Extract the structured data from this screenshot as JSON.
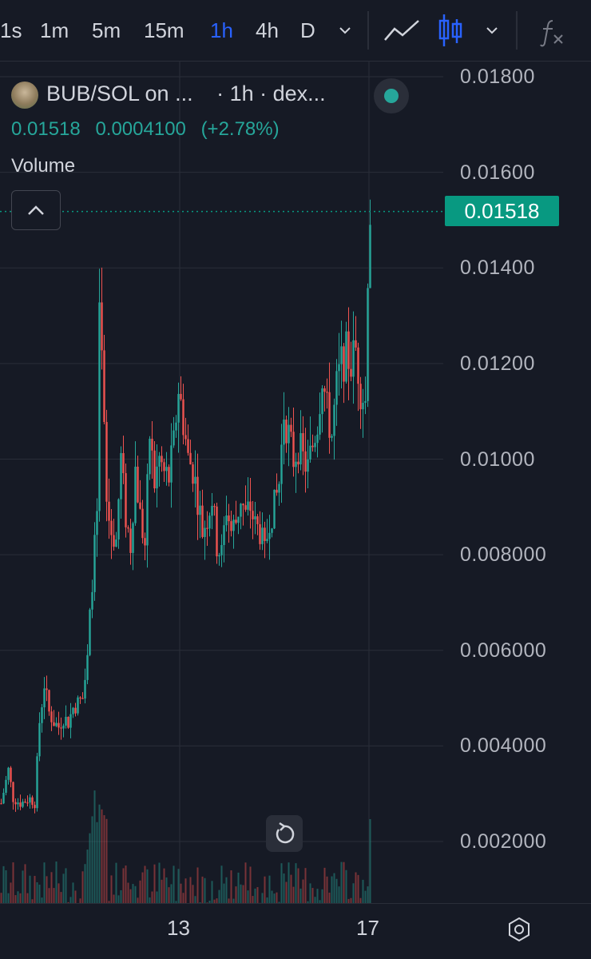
{
  "toolbar": {
    "timeframes": [
      "1s",
      "1m",
      "5m",
      "15m",
      "1h",
      "4h",
      "D"
    ],
    "active_timeframe": "1h",
    "icons": [
      "chevron-down-icon",
      "line-chart-icon",
      "candles-icon",
      "chevron-down-icon",
      "indicators-fx-icon"
    ]
  },
  "header": {
    "title": "BUB/SOL on ...",
    "interval": "· 1h · dex...",
    "price": "0.01518",
    "change": "0.0004100",
    "change_pct": "(+2.78%)",
    "volume_label": "Volume"
  },
  "colors": {
    "up": "#26a69a",
    "down": "#ef5350",
    "background": "#161a25",
    "accent": "#2962ff",
    "price_tag": "#089981"
  },
  "chart_data": {
    "type": "candlestick",
    "symbol": "BUB/SOL",
    "interval": "1h",
    "last_price": "0.01518",
    "y_ticks": [
      "0.01800",
      "0.01600",
      "0.01400",
      "0.01200",
      "0.01000",
      "0.008000",
      "0.006000",
      "0.004000",
      "0.002000"
    ],
    "ylim": [
      0.0,
      0.0184
    ],
    "x_ticks": [
      "13",
      "17"
    ],
    "x_tick_index": [
      75,
      154
    ],
    "price_path": [
      [
        0,
        0.0028
      ],
      [
        3,
        0.0035
      ],
      [
        5,
        0.0029
      ],
      [
        8,
        0.0028
      ],
      [
        12,
        0.0029
      ],
      [
        14,
        0.0028
      ],
      [
        16,
        0.0045
      ],
      [
        18,
        0.0053
      ],
      [
        20,
        0.0047
      ],
      [
        22,
        0.0045
      ],
      [
        24,
        0.0044
      ],
      [
        26,
        0.0046
      ],
      [
        28,
        0.0045
      ],
      [
        30,
        0.0048
      ],
      [
        32,
        0.0049
      ],
      [
        34,
        0.005
      ],
      [
        36,
        0.0058
      ],
      [
        38,
        0.0075
      ],
      [
        40,
        0.0088
      ],
      [
        41,
        0.0128
      ],
      [
        42,
        0.012
      ],
      [
        44,
        0.009
      ],
      [
        46,
        0.0085
      ],
      [
        48,
        0.0083
      ],
      [
        50,
        0.01
      ],
      [
        52,
        0.0088
      ],
      [
        54,
        0.0082
      ],
      [
        56,
        0.0098
      ],
      [
        58,
        0.0088
      ],
      [
        60,
        0.0082
      ],
      [
        62,
        0.0105
      ],
      [
        64,
        0.0095
      ],
      [
        66,
        0.01
      ],
      [
        68,
        0.0097
      ],
      [
        70,
        0.0096
      ],
      [
        72,
        0.0103
      ],
      [
        74,
        0.0115
      ],
      [
        76,
        0.0108
      ],
      [
        78,
        0.01
      ],
      [
        80,
        0.0098
      ],
      [
        82,
        0.0092
      ],
      [
        84,
        0.0085
      ],
      [
        86,
        0.0088
      ],
      [
        88,
        0.0092
      ],
      [
        90,
        0.0082
      ],
      [
        92,
        0.008
      ],
      [
        94,
        0.009
      ],
      [
        96,
        0.0085
      ],
      [
        98,
        0.0087
      ],
      [
        100,
        0.0092
      ],
      [
        102,
        0.0088
      ],
      [
        104,
        0.009
      ],
      [
        106,
        0.0086
      ],
      [
        108,
        0.0085
      ],
      [
        110,
        0.008
      ],
      [
        112,
        0.0088
      ],
      [
        114,
        0.009
      ],
      [
        116,
        0.0095
      ],
      [
        118,
        0.011
      ],
      [
        120,
        0.0105
      ],
      [
        122,
        0.01
      ],
      [
        124,
        0.0103
      ],
      [
        126,
        0.01
      ],
      [
        128,
        0.0098
      ],
      [
        130,
        0.0103
      ],
      [
        132,
        0.0108
      ],
      [
        134,
        0.0118
      ],
      [
        136,
        0.011
      ],
      [
        138,
        0.0105
      ],
      [
        140,
        0.0115
      ],
      [
        142,
        0.012
      ],
      [
        144,
        0.0122
      ],
      [
        146,
        0.012
      ],
      [
        148,
        0.0123
      ],
      [
        150,
        0.0115
      ],
      [
        152,
        0.0112
      ],
      [
        153,
        0.014
      ],
      [
        154,
        0.01518
      ]
    ],
    "volume_max": 0.0021
  }
}
